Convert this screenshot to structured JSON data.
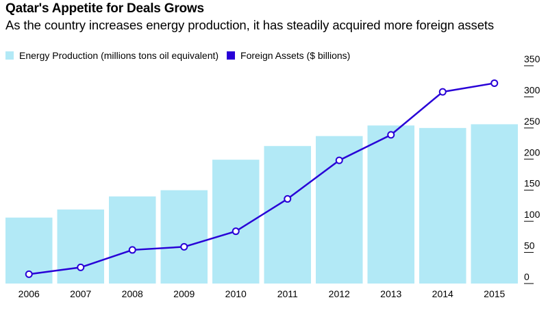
{
  "chart_data": {
    "type": "bar",
    "title": "Qatar's Appetite for Deals Grows",
    "subtitle": "As the country increases energy production, it has steadily acquired more foreign assets",
    "xlabel": "",
    "ylabel": "",
    "ylim": [
      0,
      350
    ],
    "yticks": [
      "0",
      "50",
      "100",
      "150",
      "200",
      "250",
      "300",
      "350"
    ],
    "ytick_values": [
      0,
      50,
      100,
      150,
      200,
      250,
      300,
      350
    ],
    "y_axis_side": "right",
    "grid": false,
    "legend_position": "top-left",
    "categories": [
      "2006",
      "2007",
      "2008",
      "2009",
      "2010",
      "2011",
      "2012",
      "2013",
      "2014",
      "2015"
    ],
    "series": [
      {
        "name": "Energy Production (millions tons oil equivalent)",
        "type": "bar",
        "color": "#b2e9f6",
        "values": [
          106,
          119,
          140,
          150,
          199,
          221,
          237,
          254,
          250,
          256
        ]
      },
      {
        "name": "Foreign Assets ($ billions)",
        "type": "line",
        "color": "#2800d7",
        "marker": "hollow-circle",
        "values": [
          15,
          26,
          54,
          59,
          84,
          136,
          198,
          239,
          308,
          322
        ]
      }
    ]
  }
}
